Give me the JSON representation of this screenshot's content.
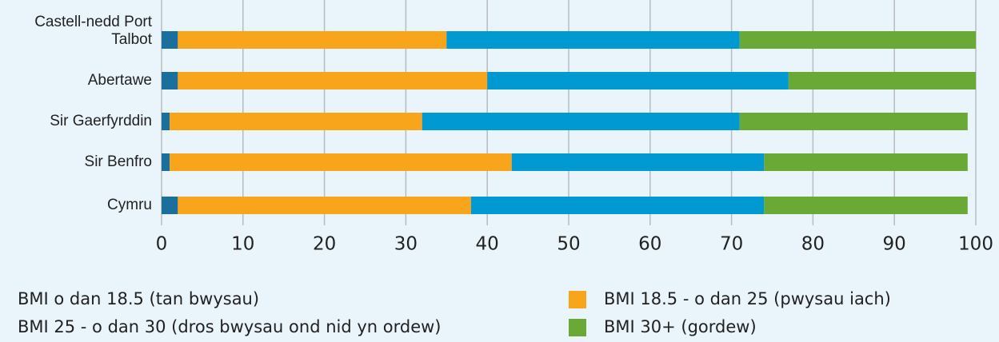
{
  "chart_data": {
    "type": "bar",
    "orientation": "horizontal",
    "stacked": true,
    "categories": [
      "Castell-nedd Port Talbot",
      "Abertawe",
      "Sir Gaerfyrddin",
      "Sir Benfro",
      "Cymru"
    ],
    "series": [
      {
        "name": "BMI o dan 18.5 (tan bwysau)",
        "color": "#1b6f9c",
        "values": [
          2,
          2,
          1,
          1,
          2
        ]
      },
      {
        "name": "BMI 18.5 - o dan 25 (pwysau iach)",
        "color": "#f9a51b",
        "values": [
          33,
          38,
          31,
          42,
          36
        ]
      },
      {
        "name": "BMI 25 - o dan 30 (dros bwysau ond nid yn ordew)",
        "color": "#0099d1",
        "values": [
          36,
          37,
          39,
          31,
          36
        ]
      },
      {
        "name": "BMI 30+ (gordew)",
        "color": "#6aa936",
        "values": [
          29,
          23,
          28,
          25,
          25
        ]
      }
    ],
    "xlim": [
      0,
      100
    ],
    "xticks": [
      0,
      10,
      20,
      30,
      40,
      50,
      60,
      70,
      80,
      90,
      100
    ],
    "grid": true
  }
}
